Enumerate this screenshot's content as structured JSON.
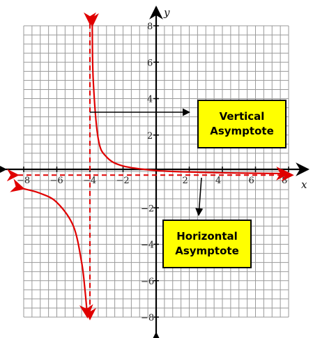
{
  "chart_data": {
    "type": "line",
    "title": "",
    "xlabel": "x",
    "ylabel": "y",
    "xlim": [
      -8,
      8
    ],
    "ylim": [
      -8,
      8
    ],
    "grid": true,
    "x_ticks": [
      "-8",
      "-6",
      "-4",
      "-2",
      "2",
      "4",
      "6",
      "8"
    ],
    "y_ticks": [
      "8",
      "6",
      "4",
      "2",
      "-2",
      "-4",
      "-6",
      "-8"
    ],
    "function": {
      "vertical_asymptote_x": -4,
      "horizontal_asymptote_y": -0.2,
      "series_color": "#e00000",
      "right_branch": [
        [
          -3.86,
          8
        ],
        [
          -3.8,
          5.0
        ],
        [
          -3.5,
          1.8
        ],
        [
          -3.0,
          0.8
        ],
        [
          -2.0,
          0.3
        ],
        [
          0,
          0.05
        ],
        [
          2,
          -0.03
        ],
        [
          4,
          -0.075
        ],
        [
          6,
          -0.1
        ],
        [
          8,
          -0.12
        ]
      ],
      "left_branch": [
        [
          -8,
          -0.95
        ],
        [
          -7,
          -1.2
        ],
        [
          -6,
          -1.7
        ],
        [
          -5,
          -3.0
        ],
        [
          -4.5,
          -5.0
        ],
        [
          -4.3,
          -6.5
        ],
        [
          -4.15,
          -8
        ]
      ]
    },
    "annotations": [
      {
        "text_lines": [
          "Vertical",
          "Asymptote"
        ],
        "points_to": "vertical-asymptote",
        "fill": "#ffff00"
      },
      {
        "text_lines": [
          "Horizontal",
          "Asymptote"
        ],
        "points_to": "horizontal-asymptote",
        "fill": "#ffff00"
      }
    ]
  }
}
